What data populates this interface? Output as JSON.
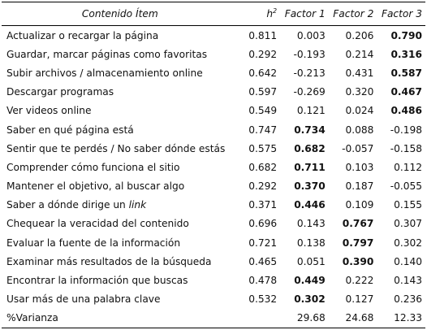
{
  "header": {
    "item": "Contenido Ítem",
    "h2_base": "h",
    "h2_exp": "2",
    "f1": "Factor 1",
    "f2": "Factor 2",
    "f3": "Factor 3"
  },
  "rows": [
    {
      "item": "Actualizar o recargar la página",
      "h2": "0.811",
      "f1": "0.003",
      "f2": "0.206",
      "f3": "0.790",
      "bold": 3
    },
    {
      "item": "Guardar, marcar páginas como favoritas",
      "h2": "0.292",
      "f1": "-0.193",
      "f2": "0.214",
      "f3": "0.316",
      "bold": 3
    },
    {
      "item": "Subir archivos / almacenamiento online",
      "h2": "0.642",
      "f1": "-0.213",
      "f2": "0.431",
      "f3": "0.587",
      "bold": 3
    },
    {
      "item": "Descargar programas",
      "h2": "0.597",
      "f1": "-0.269",
      "f2": "0.320",
      "f3": "0.467",
      "bold": 3
    },
    {
      "item": "Ver videos online",
      "h2": "0.549",
      "f1": "0.121",
      "f2": "0.024",
      "f3": "0.486",
      "bold": 3
    },
    {
      "item": "Saber en qué página está",
      "h2": "0.747",
      "f1": "0.734",
      "f2": "0.088",
      "f3": "-0.198",
      "bold": 1
    },
    {
      "item": "Sentir que te perdés / No saber dónde estás",
      "h2": "0.575",
      "f1": "0.682",
      "f2": "-0.057",
      "f3": "-0.158",
      "bold": 1
    },
    {
      "item": "Comprender cómo funciona el sitio",
      "h2": "0.682",
      "f1": "0.711",
      "f2": "0.103",
      "f3": "0.112",
      "bold": 1
    },
    {
      "item": "Mantener el objetivo, al buscar algo",
      "h2": "0.292",
      "f1": "0.370",
      "f2": "0.187",
      "f3": "-0.055",
      "bold": 1
    },
    {
      "item_prefix": "Saber a dónde dirige un ",
      "item_italic": "link",
      "h2": "0.371",
      "f1": "0.446",
      "f2": "0.109",
      "f3": "0.155",
      "bold": 1
    },
    {
      "item": "Chequear la veracidad del contenido",
      "h2": "0.696",
      "f1": "0.143",
      "f2": "0.767",
      "f3": "0.307",
      "bold": 2
    },
    {
      "item": "Evaluar la fuente de la información",
      "h2": "0.721",
      "f1": "0.138",
      "f2": "0.797",
      "f3": "0.302",
      "bold": 2
    },
    {
      "item": "Examinar más resultados de la búsqueda",
      "h2": "0.465",
      "f1": "0.051",
      "f2": "0.390",
      "f3": "0.140",
      "bold": 2
    },
    {
      "item": "Encontrar la información que buscas",
      "h2": "0.478",
      "f1": "0.449",
      "f2": "0.222",
      "f3": "0.143",
      "bold": 1
    },
    {
      "item": "Usar más de una palabra clave",
      "h2": "0.532",
      "f1": "0.302",
      "f2": "0.127",
      "f3": "0.236",
      "bold": 1
    },
    {
      "item": "%Varianza",
      "h2": "",
      "f1": "29.68",
      "f2": "24.68",
      "f3": "12.33",
      "bold": 0
    }
  ]
}
